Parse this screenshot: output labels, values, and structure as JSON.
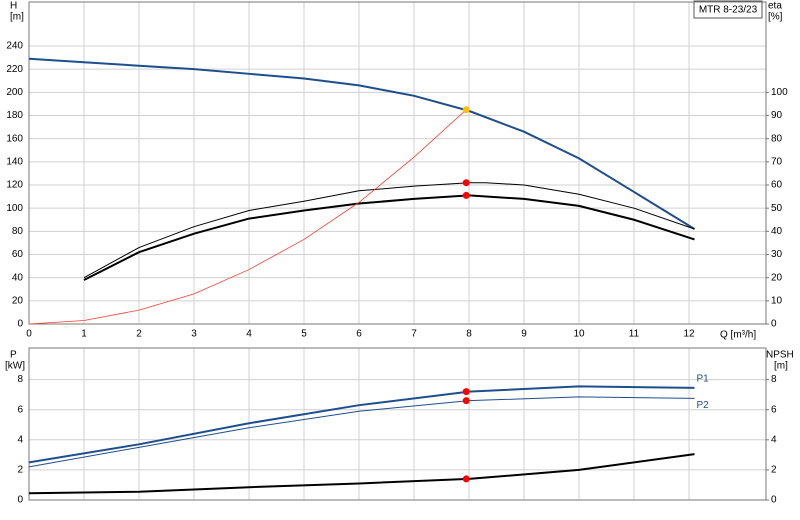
{
  "title": "MTR 8-23/23",
  "chart_data": [
    {
      "type": "line",
      "x_label": "Q [m³/h]",
      "y_label": "H",
      "y_unit": "[m]",
      "y2_label": "eta",
      "y2_unit": "[%]",
      "xlim": [
        0,
        13.4
      ],
      "xticks": [
        0,
        1,
        2,
        3,
        4,
        5,
        6,
        7,
        8,
        9,
        10,
        11,
        12
      ],
      "ylim": [
        0,
        278
      ],
      "yticks": [
        0,
        20,
        40,
        60,
        80,
        100,
        120,
        140,
        160,
        180,
        200,
        220,
        240
      ],
      "y2lim": [
        0,
        139
      ],
      "y2ticks": [
        0,
        10,
        20,
        30,
        40,
        50,
        60,
        70,
        80,
        90,
        100
      ],
      "grid": true,
      "series": [
        {
          "color": "#1f4e8c",
          "width": 2,
          "x": [
            0,
            1,
            2,
            3,
            4,
            5,
            6,
            7,
            8,
            9,
            10,
            11,
            12.1
          ],
          "values": [
            229,
            226,
            223,
            220,
            216,
            212,
            206,
            197,
            184,
            166,
            143,
            114,
            82
          ]
        },
        {
          "color": "#000000",
          "width": 1,
          "axis": "y2",
          "x": [
            1,
            2,
            3,
            4,
            5,
            6,
            7,
            8,
            8.3,
            9,
            10,
            11,
            12.1
          ],
          "values": [
            20,
            33,
            42,
            49,
            53,
            57.5,
            59.5,
            61,
            61,
            60,
            56,
            50,
            41
          ]
        },
        {
          "color": "#000000",
          "width": 2,
          "axis": "y2",
          "x": [
            1,
            2,
            3,
            4,
            5,
            6,
            7,
            8,
            9,
            10,
            11,
            12.1
          ],
          "values": [
            19,
            31,
            39,
            45.5,
            49,
            52,
            54,
            55.5,
            54,
            51,
            45,
            36.5
          ]
        },
        {
          "color": "#ff3b30",
          "width": 0.8,
          "x": [
            0,
            1,
            2,
            3,
            4,
            5,
            6,
            7,
            7.95
          ],
          "values": [
            0,
            3,
            12,
            26,
            47,
            73,
            105,
            144,
            185
          ]
        },
        {
          "color": "#ff0000",
          "axis": "y2",
          "x": [
            7.95
          ],
          "values": [
            61
          ]
        },
        {
          "color": "#ff0000",
          "axis": "y2",
          "x": [
            7.95
          ],
          "values": [
            55.5
          ]
        },
        {
          "color": "#ffc000",
          "x": [
            7.95
          ],
          "values": [
            185
          ]
        }
      ]
    },
    {
      "type": "line",
      "y_label": "P",
      "y_unit": "[kW]",
      "y2_label": "NPSH",
      "y2_unit": "[m]",
      "xlim": [
        0,
        13.4
      ],
      "xticks": [
        0,
        1,
        2,
        3,
        4,
        5,
        6,
        7,
        8,
        9,
        10,
        11,
        12
      ],
      "ylim": [
        0,
        10.1
      ],
      "yticks": [
        0,
        2,
        4,
        6,
        8
      ],
      "y2lim": [
        0,
        10.1
      ],
      "y2ticks": [
        0,
        2,
        4,
        6,
        8
      ],
      "grid": true,
      "series": [
        {
          "name": "P1",
          "color": "#1f4e8c",
          "width": 2,
          "x": [
            0,
            2,
            4,
            6,
            8,
            10,
            12.1
          ],
          "values": [
            2.5,
            3.7,
            5.1,
            6.3,
            7.2,
            7.55,
            7.45
          ]
        },
        {
          "name": "P2",
          "color": "#1f4e8c",
          "width": 1,
          "x": [
            0,
            2,
            4,
            6,
            8,
            10,
            12.1
          ],
          "values": [
            2.2,
            3.5,
            4.8,
            5.9,
            6.6,
            6.85,
            6.75
          ]
        },
        {
          "color": "#000000",
          "width": 2,
          "axis": "y2",
          "x": [
            0,
            2,
            4,
            6,
            8,
            10,
            12.1
          ],
          "values": [
            0.45,
            0.55,
            0.85,
            1.1,
            1.4,
            2.0,
            3.05
          ]
        },
        {
          "color": "#ff0000",
          "x": [
            7.95
          ],
          "values": [
            7.2
          ]
        },
        {
          "color": "#ff0000",
          "x": [
            7.95
          ],
          "values": [
            6.6
          ]
        },
        {
          "color": "#ff0000",
          "axis": "y2",
          "x": [
            7.95
          ],
          "values": [
            1.4
          ]
        }
      ]
    }
  ]
}
